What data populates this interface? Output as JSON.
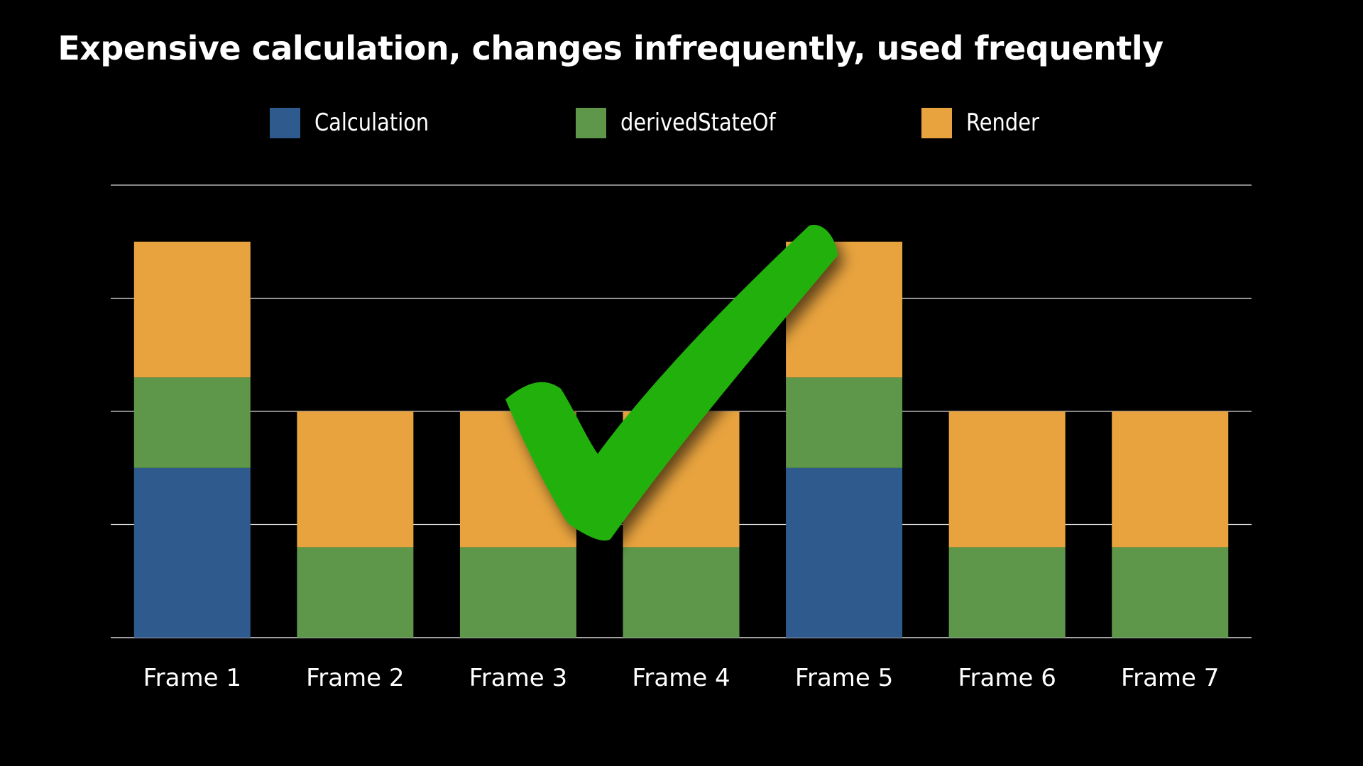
{
  "title": "Expensive calculation, changes infrequently, used frequently",
  "legend": [
    {
      "label": "Calculation",
      "color": "#2e5a8e"
    },
    {
      "label": "derivedStateOf",
      "color": "#5e974a"
    },
    {
      "label": "Render",
      "color": "#e8a33e"
    }
  ],
  "overlay": {
    "icon": "checkmark-icon",
    "color": "#22b00a"
  },
  "chart_data": {
    "type": "bar",
    "stacked": true,
    "categories": [
      "Frame 1",
      "Frame 2",
      "Frame 3",
      "Frame 4",
      "Frame 5",
      "Frame 6",
      "Frame 7"
    ],
    "series": [
      {
        "name": "Calculation",
        "color": "#2e5a8e",
        "values": [
          1.5,
          0,
          0,
          0,
          1.5,
          0,
          0
        ]
      },
      {
        "name": "derivedStateOf",
        "color": "#5e974a",
        "values": [
          0.8,
          0.8,
          0.8,
          0.8,
          0.8,
          0.8,
          0.8
        ]
      },
      {
        "name": "Render",
        "color": "#e8a33e",
        "values": [
          1.2,
          1.2,
          1.2,
          1.2,
          1.2,
          1.2,
          1.2
        ]
      }
    ],
    "ylim": [
      0,
      4
    ],
    "grid": true,
    "legend_position": "top",
    "xlabel": "",
    "ylabel": ""
  }
}
